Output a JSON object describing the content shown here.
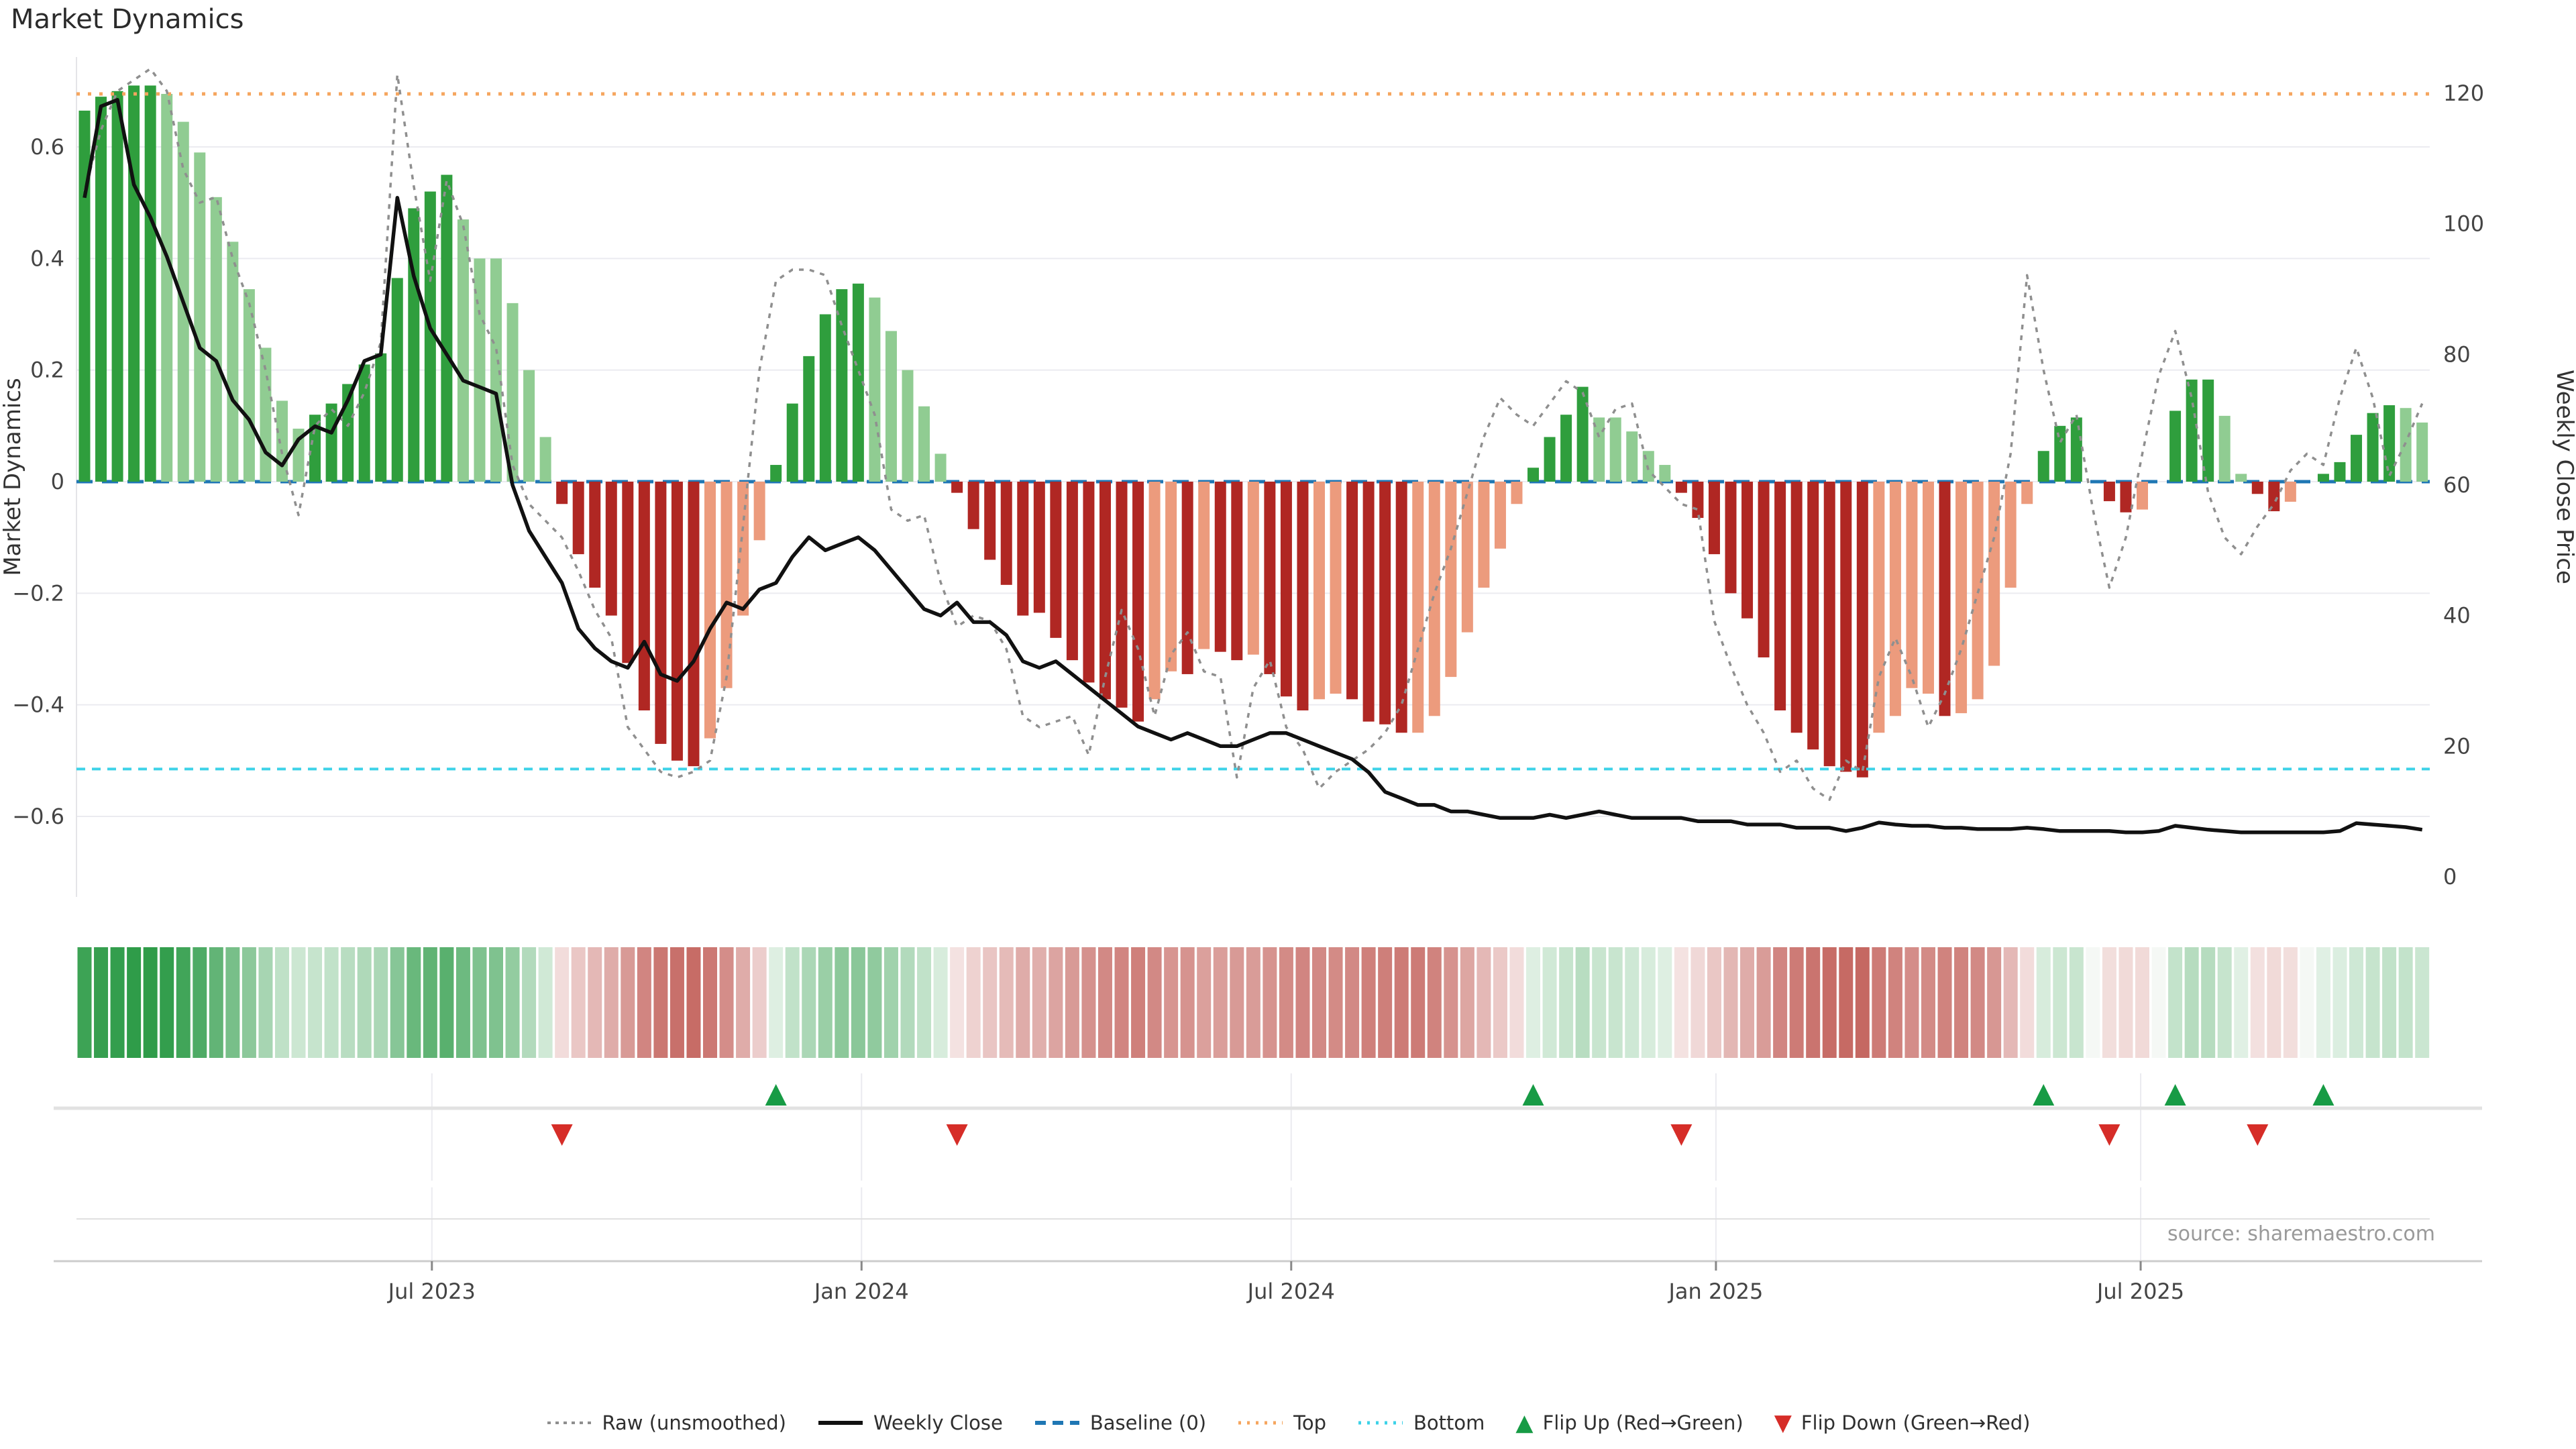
{
  "title": "Market Dynamics",
  "source": "source: sharemaestro.com",
  "colors": {
    "bar_dark_green": "#2f9e3d",
    "bar_light_green": "#90cc92",
    "bar_dark_red": "#b02723",
    "bar_light_red": "#ec9b7d",
    "heat_green_base": "34,150,62",
    "heat_red_base": "176,48,40",
    "baseline_blue": "#1f77b4",
    "top_orange": "#f5a55e",
    "bottom_cyan": "#3dd2e8",
    "close_black": "#111111",
    "raw_gray": "#8f8f8f",
    "grid": "#ebebf0",
    "axis_line": "#cccccc",
    "flip_up_green": "#179b45",
    "flip_down_red": "#d62d28",
    "tick_text": "#444444",
    "label_text": "#333333"
  },
  "legend": [
    {
      "id": "raw",
      "label": "Raw (unsmoothed)"
    },
    {
      "id": "close",
      "label": "Weekly Close"
    },
    {
      "id": "baseline",
      "label": "Baseline (0)"
    },
    {
      "id": "top",
      "label": "Top"
    },
    {
      "id": "bottom",
      "label": "Bottom"
    },
    {
      "id": "flip-up",
      "label": "Flip Up (Red→Green)"
    },
    {
      "id": "flip-down",
      "label": "Flip Down (Green→Red)"
    }
  ],
  "chart_data": {
    "type": "combo (bar + line, weekly)",
    "x_unit": "weeks",
    "n_weeks": 143,
    "left_axis": {
      "label": "Market Dynamics",
      "tick_values": [
        0.6,
        0.4,
        0.2,
        0,
        -0.2,
        -0.4,
        -0.6
      ],
      "tick_labels": [
        "0.6",
        "0.4",
        "0.2",
        "0",
        "−0.2",
        "−0.4",
        "−0.6"
      ]
    },
    "right_axis": {
      "label": "Weekly Close Price",
      "tick_values": [
        120,
        100,
        80,
        60,
        40,
        20,
        0
      ],
      "tick_labels": [
        "120",
        "100",
        "80",
        "60",
        "40",
        "20",
        "0"
      ]
    },
    "x_ticks": [
      {
        "pos": 21.1,
        "label": "Jul 2023"
      },
      {
        "pos": 47.2,
        "label": "Jan 2024"
      },
      {
        "pos": 73.3,
        "label": "Jul 2024"
      },
      {
        "pos": 99.1,
        "label": "Jan 2025"
      },
      {
        "pos": 124.9,
        "label": "Jul 2025"
      }
    ],
    "reference_lines": {
      "baseline": 0,
      "top": 0.695,
      "bottom": -0.515
    },
    "bars": {
      "name": "Market Dynamics (smoothed)",
      "tone_key": "D = saturated bar, L = light bar, - = no bar (zero)",
      "tones": "DDDDDLLLLLLLLLDDDDDDDDDLLLLLLDDDDDDDDDLLLLDDDDDDLLLLLDDDDDDDDDDDDLLDLDDLDDDLLDDDDLLLLLLLDDDDLLLLLDDDDDDDDDDDDLLLLDLLLLLDDD-DDL-DDDLLDDL-DDDDDLL",
      "values": [
        0.665,
        0.69,
        0.7,
        0.71,
        0.71,
        0.695,
        0.645,
        0.59,
        0.51,
        0.43,
        0.345,
        0.24,
        0.145,
        0.095,
        0.12,
        0.14,
        0.175,
        0.21,
        0.23,
        0.365,
        0.49,
        0.52,
        0.55,
        0.47,
        0.4,
        0.4,
        0.32,
        0.2,
        0.08,
        -0.04,
        -0.13,
        -0.19,
        -0.24,
        -0.325,
        -0.41,
        -0.47,
        -0.5,
        -0.51,
        -0.46,
        -0.37,
        -0.24,
        -0.105,
        0.03,
        0.14,
        0.225,
        0.3,
        0.345,
        0.355,
        0.33,
        0.27,
        0.2,
        0.135,
        0.05,
        -0.02,
        -0.085,
        -0.14,
        -0.185,
        -0.24,
        -0.235,
        -0.28,
        -0.32,
        -0.36,
        -0.39,
        -0.405,
        -0.43,
        -0.39,
        -0.34,
        -0.345,
        -0.3,
        -0.305,
        -0.32,
        -0.31,
        -0.345,
        -0.385,
        -0.41,
        -0.39,
        -0.38,
        -0.39,
        -0.43,
        -0.435,
        -0.45,
        -0.45,
        -0.42,
        -0.35,
        -0.27,
        -0.19,
        -0.12,
        -0.04,
        0.025,
        0.08,
        0.12,
        0.17,
        0.115,
        0.115,
        0.09,
        0.055,
        0.03,
        -0.02,
        -0.065,
        -0.13,
        -0.2,
        -0.245,
        -0.315,
        -0.41,
        -0.45,
        -0.48,
        -0.51,
        -0.52,
        -0.53,
        -0.45,
        -0.42,
        -0.37,
        -0.38,
        -0.42,
        -0.415,
        -0.39,
        -0.33,
        -0.19,
        -0.04,
        0.055,
        0.1,
        0.115,
        0.0,
        -0.035,
        -0.055,
        -0.05,
        0.0,
        0.127,
        0.183,
        0.183,
        0.118,
        0.014,
        -0.022,
        -0.053,
        -0.036,
        0.0,
        0.014,
        0.035,
        0.084,
        0.123,
        0.137,
        0.132,
        0.106
      ]
    },
    "raw_line": {
      "name": "Raw (unsmoothed)",
      "values": [
        0.52,
        0.63,
        0.7,
        0.72,
        0.74,
        0.7,
        0.56,
        0.5,
        0.51,
        0.4,
        0.32,
        0.2,
        0.05,
        -0.06,
        0.1,
        0.13,
        0.1,
        0.16,
        0.25,
        0.73,
        0.53,
        0.36,
        0.54,
        0.46,
        0.3,
        0.24,
        0.03,
        -0.04,
        -0.07,
        -0.1,
        -0.16,
        -0.23,
        -0.28,
        -0.44,
        -0.48,
        -0.52,
        -0.53,
        -0.52,
        -0.5,
        -0.35,
        -0.08,
        0.2,
        0.36,
        0.38,
        0.38,
        0.37,
        0.28,
        0.2,
        0.12,
        -0.05,
        -0.07,
        -0.06,
        -0.18,
        -0.26,
        -0.24,
        -0.25,
        -0.3,
        -0.42,
        -0.44,
        -0.43,
        -0.42,
        -0.49,
        -0.35,
        -0.23,
        -0.3,
        -0.42,
        -0.31,
        -0.27,
        -0.34,
        -0.35,
        -0.53,
        -0.37,
        -0.32,
        -0.44,
        -0.48,
        -0.55,
        -0.52,
        -0.5,
        -0.48,
        -0.45,
        -0.4,
        -0.3,
        -0.2,
        -0.12,
        -0.02,
        0.08,
        0.15,
        0.12,
        0.1,
        0.14,
        0.18,
        0.16,
        0.08,
        0.13,
        0.14,
        0.02,
        -0.01,
        -0.04,
        -0.05,
        -0.25,
        -0.33,
        -0.4,
        -0.45,
        -0.52,
        -0.5,
        -0.55,
        -0.57,
        -0.5,
        -0.52,
        -0.35,
        -0.28,
        -0.35,
        -0.44,
        -0.38,
        -0.3,
        -0.2,
        -0.1,
        0.05,
        0.37,
        0.2,
        0.07,
        0.12,
        -0.05,
        -0.19,
        -0.1,
        0.05,
        0.19,
        0.27,
        0.15,
        -0.02,
        -0.1,
        -0.13,
        -0.08,
        -0.04,
        0.02,
        0.05,
        0.03,
        0.15,
        0.24,
        0.15,
        0.01,
        0.07,
        0.14
      ]
    },
    "close_line": {
      "name": "Weekly Close",
      "values": [
        104,
        118,
        119,
        106,
        101,
        95,
        88,
        81,
        79,
        73,
        70,
        65,
        63,
        67,
        69,
        68,
        73,
        79,
        80,
        104,
        92,
        84,
        80,
        76,
        75,
        74,
        60,
        53,
        49,
        45,
        38,
        35,
        33,
        32,
        36,
        31,
        30,
        33,
        38,
        42,
        41,
        44,
        45,
        49,
        52,
        50,
        51,
        52,
        50,
        47,
        44,
        41,
        40,
        42,
        39,
        39,
        37,
        33,
        32,
        33,
        31,
        29,
        27,
        25,
        23,
        22,
        21,
        22,
        21,
        20,
        20,
        21,
        22,
        22,
        21,
        20,
        19,
        18,
        16,
        13,
        12,
        11,
        11,
        10,
        10,
        9.5,
        9,
        9,
        9,
        9.5,
        9,
        9.5,
        10,
        9.5,
        9,
        9,
        9,
        9,
        8.5,
        8.5,
        8.5,
        8,
        8,
        8,
        7.5,
        7.5,
        7.5,
        7,
        7.5,
        8.3,
        8,
        7.8,
        7.8,
        7.5,
        7.5,
        7.3,
        7.3,
        7.3,
        7.5,
        7.3,
        7,
        7,
        7,
        7,
        6.8,
        6.8,
        7,
        7.8,
        7.5,
        7.2,
        7,
        6.8,
        6.8,
        6.8,
        6.8,
        6.8,
        6.8,
        7,
        8.2,
        8,
        7.8,
        7.6,
        7.2
      ]
    },
    "heat_strip": {
      "note": "one cell per week, green/red shade proportional to |bar value|"
    },
    "flip_markers": {
      "up_label": "Flip Up (Red→Green)",
      "down_label": "Flip Down (Green→Red)",
      "up_weeks": [
        42,
        88,
        119,
        127,
        136
      ],
      "down_weeks": [
        29,
        53,
        97,
        123,
        132
      ]
    }
  }
}
